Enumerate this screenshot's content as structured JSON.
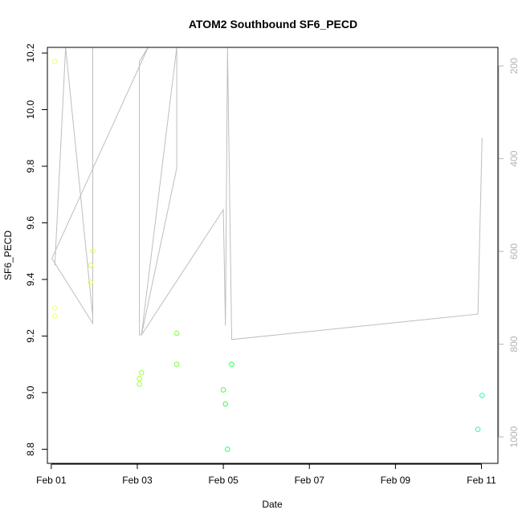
{
  "chart_data": {
    "type": "scatter",
    "title": "ATOM2 Southbound SF6_PECD",
    "xlabel": "Date",
    "ylabel": "SF6_PECD",
    "x_ticks": [
      "Feb 01",
      "Feb 03",
      "Feb 05",
      "Feb 07",
      "Feb 09",
      "Feb 11"
    ],
    "xlim": [
      "2016-01-31 21:50",
      "2016-02-11 09:10"
    ],
    "ylim": [
      8.75,
      10.22
    ],
    "y_ticks": [
      "8.8",
      "9.0",
      "9.2",
      "9.4",
      "9.6",
      "9.8",
      "10.0",
      "10.2"
    ],
    "y2_ticks": [
      "200",
      "400",
      "600",
      "800",
      "1000"
    ],
    "y2lim": [
      1057,
      160
    ],
    "grid": false,
    "points": [
      {
        "x": "2016-02-01 02:00",
        "y": 10.17,
        "color": "#e6ff73"
      },
      {
        "x": "2016-02-01 02:00",
        "y": 9.3,
        "color": "#e6ff73"
      },
      {
        "x": "2016-02-01 02:00",
        "y": 9.27,
        "color": "#e6ff73"
      },
      {
        "x": "2016-02-01 22:00",
        "y": 9.45,
        "color": "#d2ff5a"
      },
      {
        "x": "2016-02-01 22:00",
        "y": 9.39,
        "color": "#d2ff5a"
      },
      {
        "x": "2016-02-01 23:10",
        "y": 9.5,
        "color": "#d2ff5a"
      },
      {
        "x": "2016-02-03 01:10",
        "y": 9.05,
        "color": "#a0ff3c"
      },
      {
        "x": "2016-02-03 01:10",
        "y": 9.03,
        "color": "#a0ff3c"
      },
      {
        "x": "2016-02-03 02:20",
        "y": 9.07,
        "color": "#a0ff3c"
      },
      {
        "x": "2016-02-03 22:00",
        "y": 9.21,
        "color": "#7dff32"
      },
      {
        "x": "2016-02-03 22:00",
        "y": 9.1,
        "color": "#7dff32"
      },
      {
        "x": "2016-02-05 00:00",
        "y": 9.01,
        "color": "#3cff46"
      },
      {
        "x": "2016-02-05 01:10",
        "y": 8.96,
        "color": "#3cff46"
      },
      {
        "x": "2016-02-05 02:20",
        "y": 8.8,
        "color": "#28ff5a"
      },
      {
        "x": "2016-02-05 04:40",
        "y": 9.1,
        "color": "#28ff5a"
      },
      {
        "x": "2016-02-10 22:00",
        "y": 8.87,
        "color": "#1effb4"
      },
      {
        "x": "2016-02-11 00:20",
        "y": 8.99,
        "color": "#1effb4"
      }
    ],
    "altitude_trace": {
      "name": "altitude",
      "color": "#bebebe",
      "points": [
        {
          "x": "2016-02-01 02:00",
          "y": 630
        },
        {
          "x": "2016-02-01 08:00",
          "y": 120
        },
        {
          "x": "2016-02-01 23:10",
          "y": 740
        },
        {
          "x": "2016-02-01 23:10",
          "y": 120
        },
        {
          "x": "2016-02-01 23:10",
          "y": 755
        },
        {
          "x": "2016-02-01 00:20",
          "y": 615
        },
        {
          "x": "2016-02-03 06:00",
          "y": 120
        },
        {
          "x": "2016-02-03 01:10",
          "y": 190
        },
        {
          "x": "2016-02-03 01:10",
          "y": 780
        },
        {
          "x": "2016-02-03 02:20",
          "y": 780
        },
        {
          "x": "2016-02-03 22:00",
          "y": 420
        },
        {
          "x": "2016-02-03 22:00",
          "y": 120
        },
        {
          "x": "2016-02-03 02:20",
          "y": 780
        },
        {
          "x": "2016-02-05 00:00",
          "y": 510
        },
        {
          "x": "2016-02-05 01:10",
          "y": 760
        },
        {
          "x": "2016-02-05 02:20",
          "y": 120
        },
        {
          "x": "2016-02-05 04:40",
          "y": 790
        },
        {
          "x": "2016-02-10 22:00",
          "y": 735
        },
        {
          "x": "2016-02-11 00:20",
          "y": 355
        }
      ]
    }
  }
}
